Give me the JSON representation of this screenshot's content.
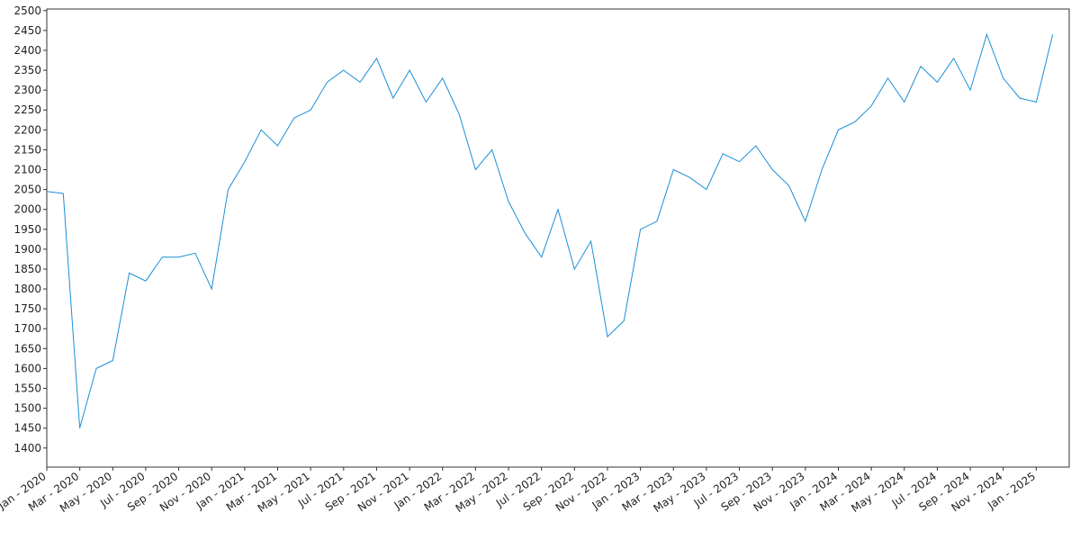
{
  "chart_data": {
    "type": "line",
    "x": [
      "2020-01",
      "2020-02",
      "2020-03",
      "2020-04",
      "2020-05",
      "2020-06",
      "2020-07",
      "2020-08",
      "2020-09",
      "2020-10",
      "2020-11",
      "2020-12",
      "2021-01",
      "2021-02",
      "2021-03",
      "2021-04",
      "2021-05",
      "2021-06",
      "2021-07",
      "2021-08",
      "2021-09",
      "2021-10",
      "2021-11",
      "2021-12",
      "2022-01",
      "2022-02",
      "2022-03",
      "2022-04",
      "2022-05",
      "2022-06",
      "2022-07",
      "2022-08",
      "2022-09",
      "2022-10",
      "2022-11",
      "2022-12",
      "2023-01",
      "2023-02",
      "2023-03",
      "2023-04",
      "2023-05",
      "2023-06",
      "2023-07",
      "2023-08",
      "2023-09",
      "2023-10",
      "2023-11",
      "2023-12",
      "2024-01",
      "2024-02",
      "2024-03",
      "2024-04",
      "2024-05",
      "2024-06",
      "2024-07",
      "2024-08",
      "2024-09",
      "2024-10",
      "2024-11",
      "2024-12",
      "2025-01",
      "2025-02"
    ],
    "series": [
      {
        "color": "#1a8fd8",
        "values": [
          2045,
          2040,
          1450,
          1600,
          1620,
          1840,
          1820,
          1880,
          1880,
          1890,
          1800,
          2050,
          2120,
          2200,
          2160,
          2230,
          2250,
          2320,
          2350,
          2320,
          2380,
          2280,
          2350,
          2270,
          2330,
          2240,
          2100,
          2150,
          2020,
          1940,
          1880,
          2000,
          1850,
          1920,
          1680,
          1720,
          1950,
          1970,
          2100,
          2080,
          2050,
          2140,
          2120,
          2160,
          2100,
          2060,
          1970,
          2100,
          2200,
          2220,
          2260,
          2330,
          2270,
          2360,
          2320,
          2380,
          2300,
          2440,
          2330,
          2280,
          2270,
          2440
        ]
      }
    ],
    "xlim": [
      "2020-01",
      "2025-03"
    ],
    "xticks": [
      {
        "value": "2020-01",
        "label": "Jan - 2020"
      },
      {
        "value": "2020-03",
        "label": "Mar - 2020"
      },
      {
        "value": "2020-05",
        "label": "May - 2020"
      },
      {
        "value": "2020-07",
        "label": "Jul - 2020"
      },
      {
        "value": "2020-09",
        "label": "Sep - 2020"
      },
      {
        "value": "2020-11",
        "label": "Nov - 2020"
      },
      {
        "value": "2021-01",
        "label": "Jan - 2021"
      },
      {
        "value": "2021-03",
        "label": "Mar - 2021"
      },
      {
        "value": "2021-05",
        "label": "May - 2021"
      },
      {
        "value": "2021-07",
        "label": "Jul - 2021"
      },
      {
        "value": "2021-09",
        "label": "Sep - 2021"
      },
      {
        "value": "2021-11",
        "label": "Nov - 2021"
      },
      {
        "value": "2022-01",
        "label": "Jan - 2022"
      },
      {
        "value": "2022-03",
        "label": "Mar - 2022"
      },
      {
        "value": "2022-05",
        "label": "May - 2022"
      },
      {
        "value": "2022-07",
        "label": "Jul - 2022"
      },
      {
        "value": "2022-09",
        "label": "Sep - 2022"
      },
      {
        "value": "2022-11",
        "label": "Nov - 2022"
      },
      {
        "value": "2023-01",
        "label": "Jan - 2023"
      },
      {
        "value": "2023-03",
        "label": "Mar - 2023"
      },
      {
        "value": "2023-05",
        "label": "May - 2023"
      },
      {
        "value": "2023-07",
        "label": "Jul - 2023"
      },
      {
        "value": "2023-09",
        "label": "Sep - 2023"
      },
      {
        "value": "2023-11",
        "label": "Nov - 2023"
      },
      {
        "value": "2024-01",
        "label": "Jan - 2024"
      },
      {
        "value": "2024-03",
        "label": "Mar - 2024"
      },
      {
        "value": "2024-05",
        "label": "May - 2024"
      },
      {
        "value": "2024-07",
        "label": "Jul - 2024"
      },
      {
        "value": "2024-09",
        "label": "Sep - 2024"
      },
      {
        "value": "2024-11",
        "label": "Nov - 2024"
      },
      {
        "value": "2025-01",
        "label": "Jan - 2025"
      }
    ],
    "ylim": [
      1352,
      2504
    ],
    "yticks": [
      1400,
      1450,
      1500,
      1550,
      1600,
      1650,
      1700,
      1750,
      1800,
      1850,
      1900,
      1950,
      2000,
      2050,
      2100,
      2150,
      2200,
      2250,
      2300,
      2350,
      2400,
      2450,
      2500
    ],
    "grid": false
  }
}
